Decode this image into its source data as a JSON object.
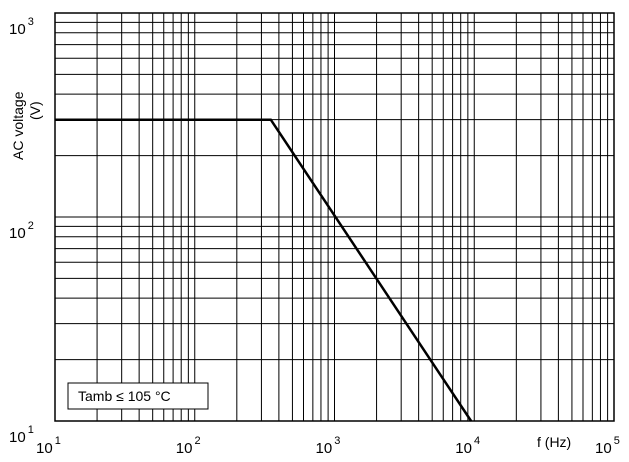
{
  "chart_data": {
    "type": "line",
    "x_scale": "log",
    "y_scale": "log",
    "xlim": [
      10,
      100000
    ],
    "ylim": [
      10,
      1000
    ],
    "grid": true,
    "x_ticks": [
      {
        "base": "10",
        "exp": "1"
      },
      {
        "base": "10",
        "exp": "2"
      },
      {
        "base": "10",
        "exp": "3"
      },
      {
        "base": "10",
        "exp": "4"
      },
      {
        "base": "10",
        "exp": "5"
      }
    ],
    "y_ticks": [
      {
        "base": "10",
        "exp": "1"
      },
      {
        "base": "10",
        "exp": "2"
      },
      {
        "base": "10",
        "exp": "3"
      }
    ],
    "xlabel": "f (Hz)",
    "ylabel": [
      "AC voltage",
      "(V)"
    ],
    "annotation": "Tamb ≤ 105 °C",
    "series": [
      {
        "x": [
          10,
          350,
          9500
        ],
        "y": [
          300,
          300,
          10
        ],
        "color": "#000000"
      }
    ]
  }
}
